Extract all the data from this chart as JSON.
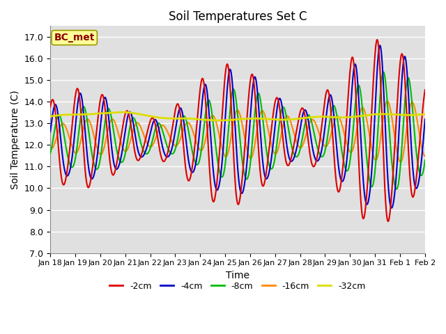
{
  "title": "Soil Temperatures Set C",
  "xlabel": "Time",
  "ylabel": "Soil Temperature (C)",
  "ylim": [
    7.0,
    17.5
  ],
  "yticks": [
    7.0,
    8.0,
    9.0,
    10.0,
    11.0,
    12.0,
    13.0,
    14.0,
    15.0,
    16.0,
    17.0
  ],
  "background_color": "#e0e0e0",
  "grid_color": "#ffffff",
  "annotation_text": "BC_met",
  "annotation_color": "#8b0000",
  "annotation_bg": "#ffff99",
  "series": {
    "-2cm": {
      "color": "#dd0000",
      "linewidth": 1.5
    },
    "-4cm": {
      "color": "#0000cc",
      "linewidth": 1.5
    },
    "-8cm": {
      "color": "#00bb00",
      "linewidth": 1.5
    },
    "-16cm": {
      "color": "#ff8800",
      "linewidth": 1.5
    },
    "-32cm": {
      "color": "#dddd00",
      "linewidth": 2.0
    }
  },
  "x_ticklabels": [
    "Jan 18",
    "Jan 19",
    "Jan 20",
    "Jan 21",
    "Jan 22",
    "Jan 23",
    "Jan 24",
    "Jan 25",
    "Jan 26",
    "Jan 27",
    "Jan 28",
    "Jan 29",
    "Jan 30",
    "Jan 31",
    "Feb 1",
    "Feb 2"
  ]
}
